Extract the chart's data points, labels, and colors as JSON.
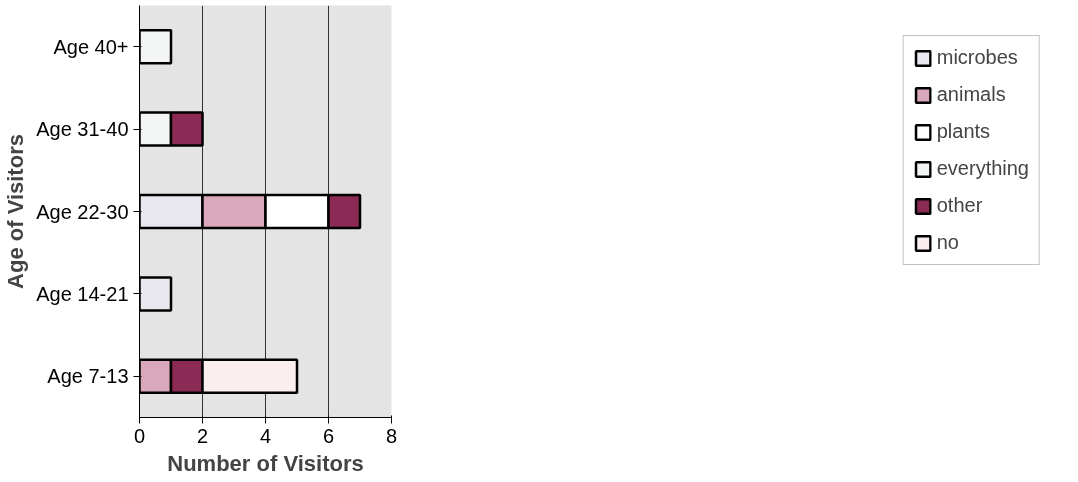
{
  "chart_data": {
    "type": "bar",
    "orientation": "horizontal",
    "stacked": true,
    "xlabel": "Number of Visitors",
    "ylabel": "Age of Visitors",
    "categories": [
      "Age 40+",
      "Age 31-40",
      "Age 22-30",
      "Age 14-21",
      "Age 7-13"
    ],
    "series": [
      {
        "name": "microbes",
        "color": "#e8e8ee",
        "values": [
          0,
          0,
          2,
          1,
          0
        ]
      },
      {
        "name": "animals",
        "color": "#d9a8bc",
        "values": [
          0,
          0,
          2,
          0,
          1
        ]
      },
      {
        "name": "plants",
        "color": "#ffffff",
        "values": [
          0,
          0,
          2,
          0,
          0
        ]
      },
      {
        "name": "everything",
        "color": "#f4f6f6",
        "values": [
          1,
          1,
          0,
          0,
          0
        ]
      },
      {
        "name": "other",
        "color": "#8b2a55",
        "values": [
          0,
          1,
          1,
          0,
          1
        ]
      },
      {
        "name": "no",
        "color": "#fbeeee",
        "values": [
          0,
          0,
          0,
          0,
          3
        ]
      }
    ],
    "xlim": [
      0,
      8
    ],
    "xticks": [
      0,
      2,
      4,
      6,
      8
    ],
    "grid": "x",
    "legend": "right"
  }
}
